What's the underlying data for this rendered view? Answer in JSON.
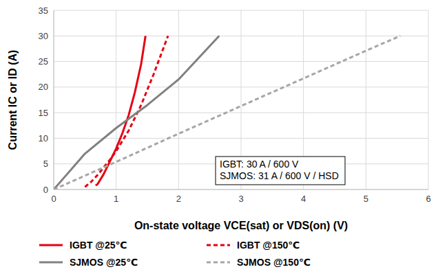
{
  "chart_data": {
    "type": "line",
    "xlabel": "On-state voltage VCE(sat) or VDS(on) (V)",
    "ylabel": "Current IC or ID (A)",
    "xlim": [
      0,
      6
    ],
    "ylim": [
      0,
      35
    ],
    "xticks": [
      0,
      1,
      2,
      3,
      4,
      5,
      6
    ],
    "yticks": [
      0,
      5,
      10,
      15,
      20,
      25,
      30,
      35
    ],
    "grid": true,
    "legend": "bottom",
    "annotations": [
      "IGBT: 30 A / 600 V",
      "SJMOS: 31 A / 600 V / HSD"
    ],
    "series": [
      {
        "name": "IGBT @25℃",
        "color": "#e60012",
        "line_style": "solid",
        "x": [
          0.67,
          0.7,
          0.8,
          0.9,
          1.0,
          1.1,
          1.2,
          1.3,
          1.4,
          1.47
        ],
        "values": [
          0.8,
          1,
          3,
          5.5,
          8,
          11,
          14.5,
          19,
          24.5,
          30
        ]
      },
      {
        "name": "IGBT @150℃",
        "color": "#e60012",
        "line_style": "dashed",
        "x": [
          0.5,
          0.6,
          0.7,
          0.8,
          0.9,
          1.0,
          1.2,
          1.4,
          1.6,
          1.83
        ],
        "values": [
          0.5,
          1.5,
          2.8,
          4.3,
          5.8,
          7.5,
          11.5,
          16.5,
          22.5,
          30
        ]
      },
      {
        "name": "SJMOS @25℃",
        "color": "#808080",
        "line_style": "solid",
        "x": [
          0,
          0.2,
          0.4,
          0.5,
          1.0,
          1.5,
          2.0,
          2.65
        ],
        "values": [
          0,
          2.8,
          5.6,
          7,
          12,
          16.5,
          21.5,
          30
        ]
      },
      {
        "name": "SJMOS @150℃",
        "color": "#a6a6a6",
        "line_style": "dashed",
        "x": [
          0,
          1,
          2,
          3,
          4,
          5,
          5.55
        ],
        "values": [
          0,
          5.4,
          10.9,
          16.3,
          21.7,
          27.1,
          30
        ]
      }
    ]
  }
}
